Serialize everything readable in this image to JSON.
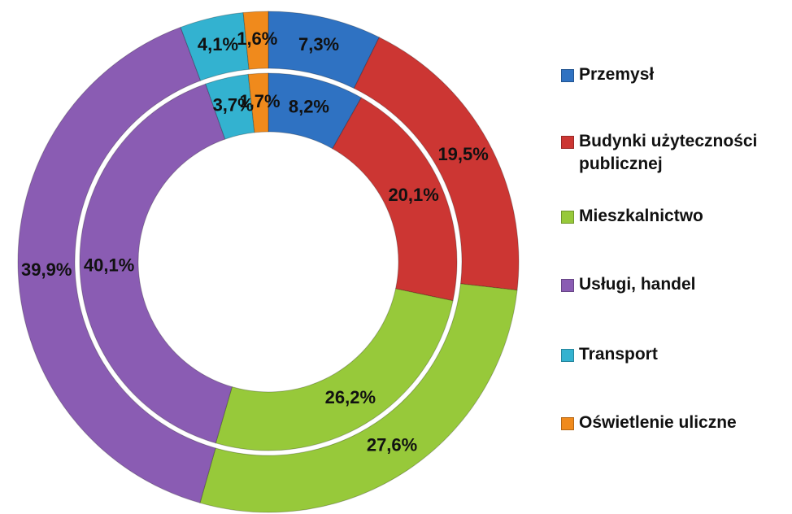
{
  "chart_data": {
    "type": "doughnut",
    "categories": [
      "Przemysł",
      "Budynki użyteczności publicznej",
      "Mieszkalnictwo",
      "Usługi, handel",
      "Transport",
      "Oświetlenie uliczne"
    ],
    "colors": [
      "#2f72c2",
      "#cc3633",
      "#97c93a",
      "#8a5cb3",
      "#33b2d0",
      "#f08a1c"
    ],
    "series": [
      {
        "values": [
          7.3,
          19.5,
          27.6,
          39.9,
          4.1,
          1.6
        ],
        "value_labels": [
          "7,3%",
          "19,5%",
          "27,6%",
          "39,9%",
          "4,1%",
          "1,6%"
        ]
      },
      {
        "values": [
          8.2,
          20.1,
          26.2,
          40.1,
          3.7,
          1.7
        ],
        "value_labels": [
          "8,2%",
          "20,1%",
          "26,2%",
          "40,1%",
          "3,7%",
          "1,7%"
        ]
      }
    ]
  }
}
